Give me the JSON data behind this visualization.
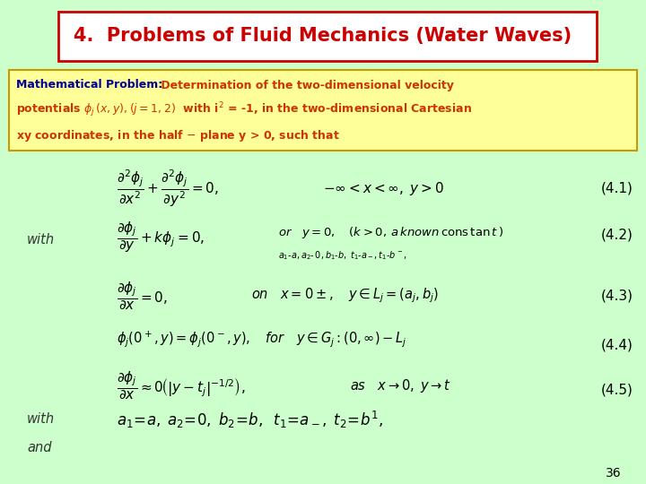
{
  "bg_color": "#ccffcc",
  "title_box_color": "#ffffff",
  "title_border_color": "#cc0000",
  "title_text": "4.  Problems of Fluid Mechanics (Water Waves)",
  "title_color": "#cc0000",
  "problem_box_color": "#ffff99",
  "problem_box_border": "#cc9900",
  "problem_label": "Mathematical Problem:",
  "problem_label_color": "#000099",
  "problem_text_color": "#cc3300",
  "eq_color": "#000000",
  "label_color": "#000000",
  "with_color": "#333333",
  "page_num": "36"
}
